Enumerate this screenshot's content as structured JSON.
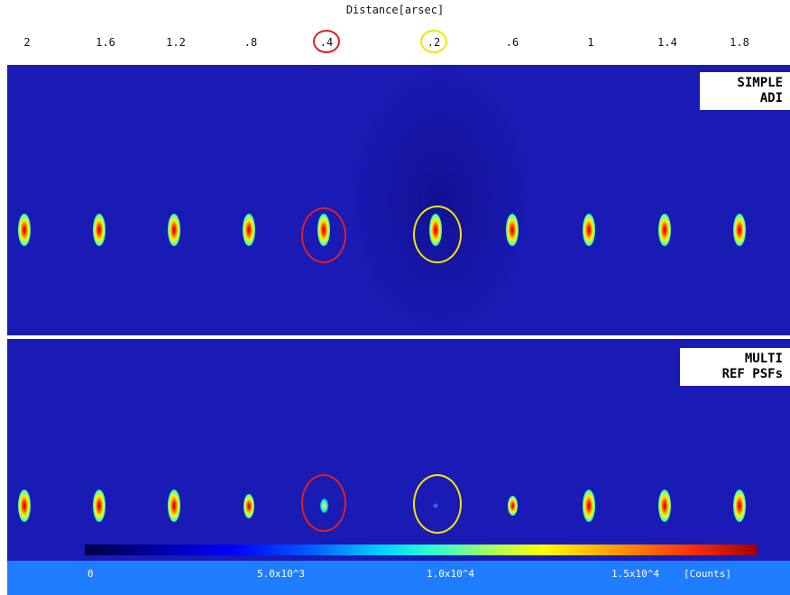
{
  "axis": {
    "title": "Distance[arsec]",
    "ticks": [
      "2",
      "1.6",
      "1.2",
      ".8",
      ".4",
      ".2",
      ".6",
      "1",
      "1.4",
      "1.8"
    ],
    "highlight_red_index": 4,
    "highlight_yellow_index": 5
  },
  "panels": [
    {
      "label": "SIMPLE\n ADI",
      "source_intensity": [
        1,
        1,
        1,
        1,
        1,
        1,
        1,
        1,
        1,
        1
      ]
    },
    {
      "label": "MULTI\nREF PSFs",
      "source_intensity": [
        1,
        1,
        1,
        0.75,
        0.45,
        0.12,
        0.6,
        1,
        1,
        1
      ]
    }
  ],
  "colorbar": {
    "labels": [
      "0",
      "5.0x10^3",
      "1.0x10^4",
      "1.5x10^4",
      "[Counts]"
    ],
    "colors": [
      "#000040",
      "#0000ff",
      "#00d0ff",
      "#a0ff60",
      "#ffff00",
      "#ff9000",
      "#a00000"
    ]
  },
  "colors": {
    "panel_background": "#1a1ab4",
    "ring_red": "#e02020",
    "ring_yellow": "#f2e600",
    "colorbar_band": "#1e7eff"
  }
}
